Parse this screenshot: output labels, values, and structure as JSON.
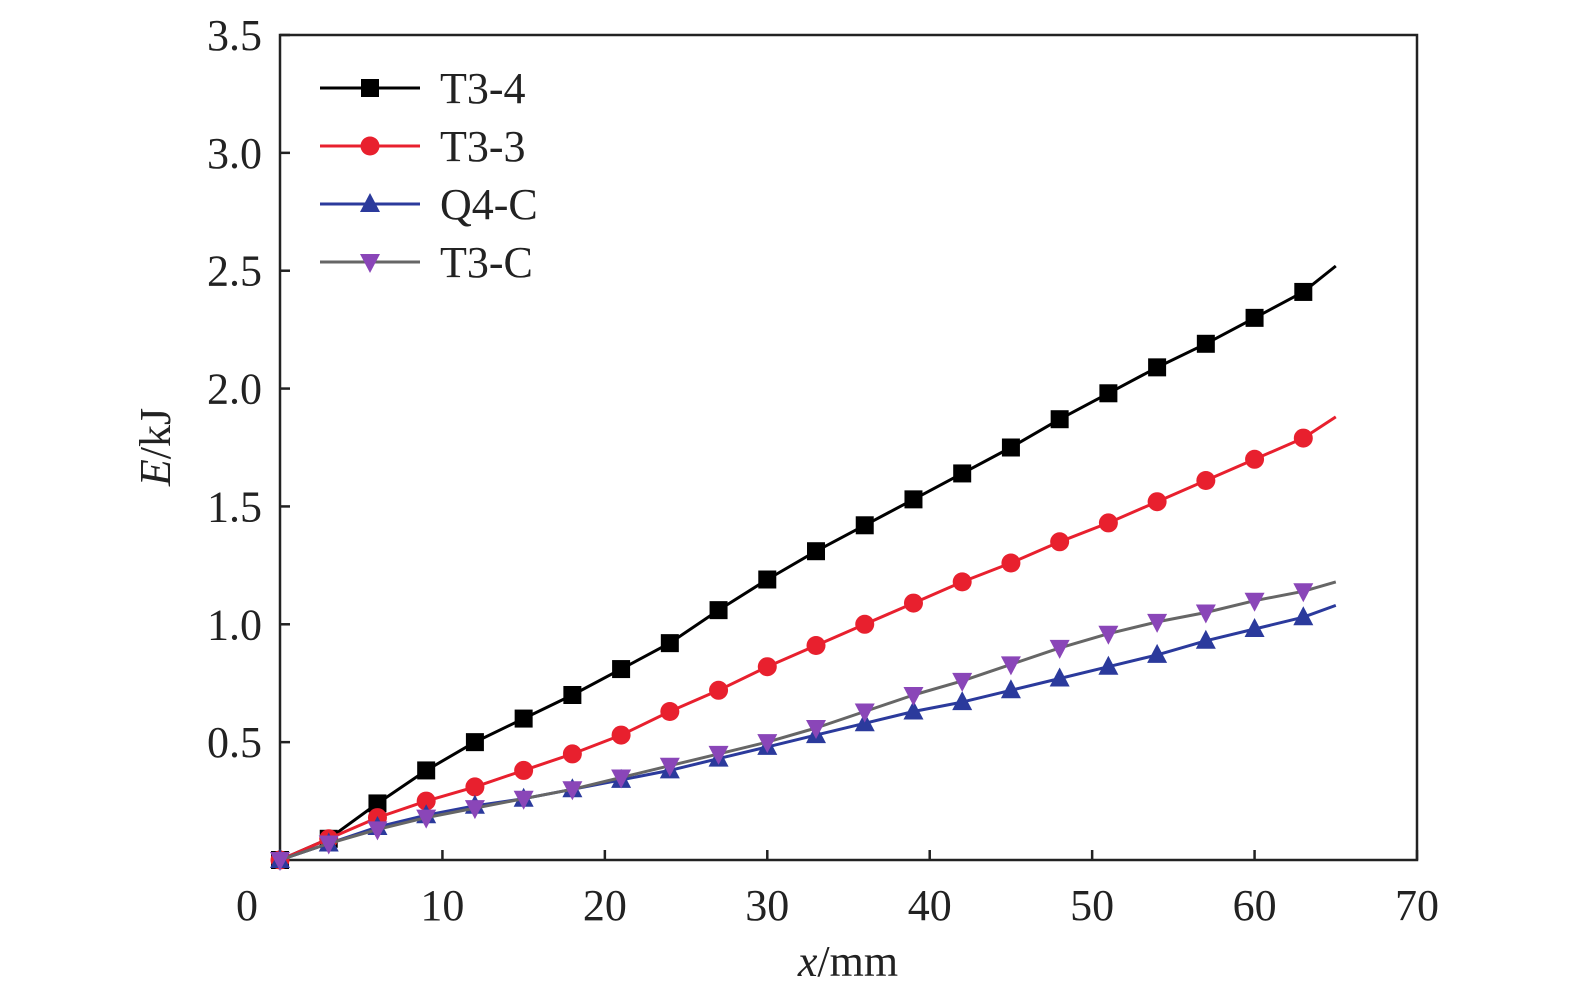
{
  "chart_data": {
    "type": "line",
    "title": "",
    "xlabel": {
      "var": "x",
      "unit": "/mm"
    },
    "ylabel": {
      "var": "E",
      "unit": "/kJ"
    },
    "xlim": [
      0,
      70
    ],
    "ylim": [
      0,
      3.5
    ],
    "x_ticks": [
      0,
      10,
      20,
      30,
      40,
      50,
      60,
      70
    ],
    "x_tick_labels": [
      "0",
      "10",
      "20",
      "30",
      "40",
      "50",
      "60",
      "70"
    ],
    "y_ticks": [
      0.5,
      1.0,
      1.5,
      2.0,
      2.5,
      3.0,
      3.5
    ],
    "y_tick_labels": [
      "0.5",
      "1.0",
      "1.5",
      "2.0",
      "2.5",
      "3.0",
      "3.5"
    ],
    "grid": false,
    "legend_position": "top-left",
    "series": [
      {
        "name": "T3-4",
        "color": "#000000",
        "marker": "square",
        "x": [
          0,
          3,
          6,
          9,
          12,
          15,
          18,
          21,
          24,
          27,
          30,
          33,
          36,
          39,
          42,
          45,
          48,
          51,
          54,
          57,
          60,
          63,
          65
        ],
        "y": [
          0,
          0.09,
          0.24,
          0.38,
          0.5,
          0.6,
          0.7,
          0.81,
          0.92,
          1.06,
          1.19,
          1.31,
          1.42,
          1.53,
          1.64,
          1.75,
          1.87,
          1.98,
          2.09,
          2.19,
          2.3,
          2.41,
          2.52
        ]
      },
      {
        "name": "T3-3",
        "color": "#e8202e",
        "marker": "circle",
        "x": [
          0,
          3,
          6,
          9,
          12,
          15,
          18,
          21,
          24,
          27,
          30,
          33,
          36,
          39,
          42,
          45,
          48,
          51,
          54,
          57,
          60,
          63,
          65
        ],
        "y": [
          0,
          0.09,
          0.18,
          0.25,
          0.31,
          0.38,
          0.45,
          0.53,
          0.63,
          0.72,
          0.82,
          0.91,
          1.0,
          1.09,
          1.18,
          1.26,
          1.35,
          1.43,
          1.52,
          1.61,
          1.7,
          1.79,
          1.88
        ]
      },
      {
        "name": "Q4-C",
        "color": "#2b3a9c",
        "marker": "triangle-up",
        "x": [
          0,
          3,
          6,
          9,
          12,
          15,
          18,
          21,
          24,
          27,
          30,
          33,
          36,
          39,
          42,
          45,
          48,
          51,
          54,
          57,
          60,
          63,
          65
        ],
        "y": [
          0,
          0.07,
          0.14,
          0.19,
          0.23,
          0.26,
          0.3,
          0.34,
          0.38,
          0.43,
          0.48,
          0.53,
          0.58,
          0.63,
          0.67,
          0.72,
          0.77,
          0.82,
          0.87,
          0.93,
          0.98,
          1.03,
          1.08
        ]
      },
      {
        "name": "T3-C",
        "color": "#8a46b8",
        "line_color": "#666666",
        "marker": "triangle-down",
        "x": [
          0,
          3,
          6,
          9,
          12,
          15,
          18,
          21,
          24,
          27,
          30,
          33,
          36,
          39,
          42,
          45,
          48,
          51,
          54,
          57,
          60,
          63,
          65
        ],
        "y": [
          0,
          0.07,
          0.13,
          0.18,
          0.22,
          0.26,
          0.3,
          0.35,
          0.4,
          0.45,
          0.5,
          0.56,
          0.63,
          0.7,
          0.76,
          0.83,
          0.9,
          0.96,
          1.01,
          1.05,
          1.1,
          1.14,
          1.18
        ]
      }
    ]
  }
}
